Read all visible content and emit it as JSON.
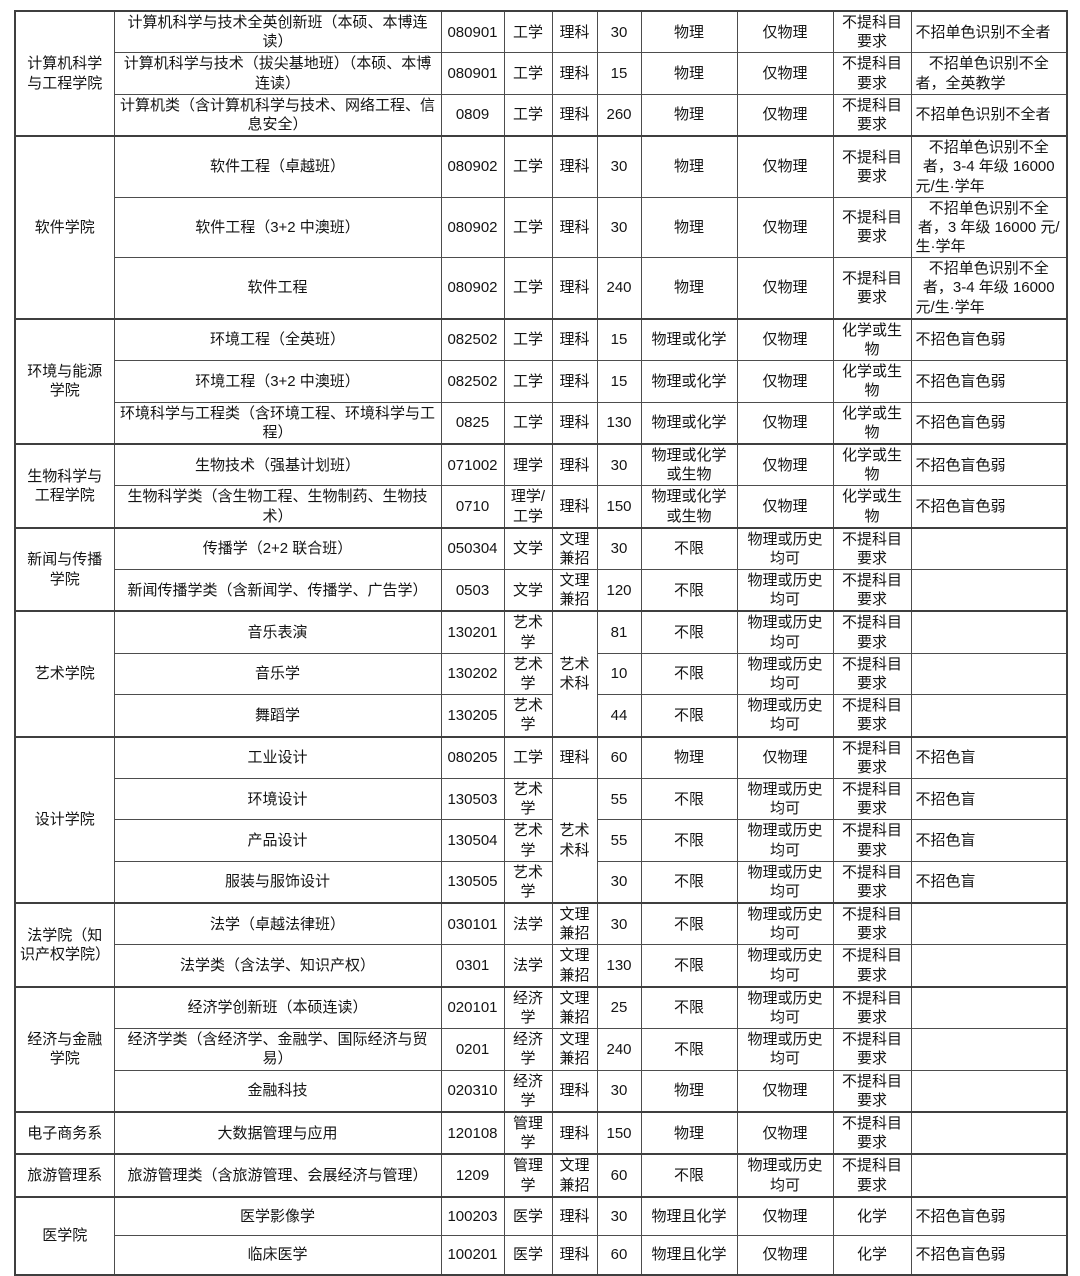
{
  "accent_colors": {
    "border": "#3f3f3f",
    "inner_border": "#4d4d4d",
    "text": "#141414",
    "background": "#ffffff"
  },
  "table": {
    "groups": [
      {
        "college": "计算机科学与工程学院",
        "rows": [
          {
            "major": "计算机科学与技术全英创新班（本硕、本博连读）",
            "code": "080901",
            "degree": "工学",
            "category": {
              "text": "理科",
              "span": 1
            },
            "quota": "30",
            "first_subject": "物理",
            "reselect": "仅物理",
            "requirement": "不提科目要求",
            "remark": "不招单色识别不全者"
          },
          {
            "major": "计算机科学与技术（拔尖基地班）（本硕、本博连读）",
            "code": "080901",
            "degree": "工学",
            "category": {
              "text": "理科",
              "span": 1
            },
            "quota": "15",
            "first_subject": "物理",
            "reselect": "仅物理",
            "requirement": "不提科目要求",
            "remark": "不招单色识别不全者，全英教学"
          },
          {
            "major": "计算机类（含计算机科学与技术、网络工程、信息安全）",
            "code": "0809",
            "degree": "工学",
            "category": {
              "text": "理科",
              "span": 1
            },
            "quota": "260",
            "first_subject": "物理",
            "reselect": "仅物理",
            "requirement": "不提科目要求",
            "remark": "不招单色识别不全者"
          }
        ]
      },
      {
        "college": "软件学院",
        "rows": [
          {
            "major": "软件工程（卓越班）",
            "code": "080902",
            "degree": "工学",
            "category": {
              "text": "理科",
              "span": 1
            },
            "quota": "30",
            "first_subject": "物理",
            "reselect": "仅物理",
            "requirement": "不提科目要求",
            "remark": "不招单色识别不全者，3-4 年级 16000 元/生·学年"
          },
          {
            "major": "软件工程（3+2 中澳班）",
            "code": "080902",
            "degree": "工学",
            "category": {
              "text": "理科",
              "span": 1
            },
            "quota": "30",
            "first_subject": "物理",
            "reselect": "仅物理",
            "requirement": "不提科目要求",
            "remark": "不招单色识别不全者，3 年级 16000 元/生·学年"
          },
          {
            "major": "软件工程",
            "code": "080902",
            "degree": "工学",
            "category": {
              "text": "理科",
              "span": 1
            },
            "quota": "240",
            "first_subject": "物理",
            "reselect": "仅物理",
            "requirement": "不提科目要求",
            "remark": "不招单色识别不全者，3-4 年级 16000 元/生·学年"
          }
        ]
      },
      {
        "college": "环境与能源学院",
        "rows": [
          {
            "major": "环境工程（全英班）",
            "code": "082502",
            "degree": "工学",
            "category": {
              "text": "理科",
              "span": 1
            },
            "quota": "15",
            "first_subject": "物理或化学",
            "reselect": "仅物理",
            "requirement": "化学或生物",
            "remark": "不招色盲色弱"
          },
          {
            "major": "环境工程（3+2 中澳班）",
            "code": "082502",
            "degree": "工学",
            "category": {
              "text": "理科",
              "span": 1
            },
            "quota": "15",
            "first_subject": "物理或化学",
            "reselect": "仅物理",
            "requirement": "化学或生物",
            "remark": "不招色盲色弱"
          },
          {
            "major": "环境科学与工程类（含环境工程、环境科学与工程）",
            "code": "0825",
            "degree": "工学",
            "category": {
              "text": "理科",
              "span": 1
            },
            "quota": "130",
            "first_subject": "物理或化学",
            "reselect": "仅物理",
            "requirement": "化学或生物",
            "remark": "不招色盲色弱"
          }
        ]
      },
      {
        "college": "生物科学与工程学院",
        "rows": [
          {
            "major": "生物技术（强基计划班）",
            "code": "071002",
            "degree": "理学",
            "category": {
              "text": "理科",
              "span": 1
            },
            "quota": "30",
            "first_subject": "物理或化学或生物",
            "reselect": "仅物理",
            "requirement": "化学或生物",
            "remark": "不招色盲色弱"
          },
          {
            "major": "生物科学类（含生物工程、生物制药、生物技术）",
            "code": "0710",
            "degree": "理学/工学",
            "category": {
              "text": "理科",
              "span": 1
            },
            "quota": "150",
            "first_subject": "物理或化学或生物",
            "reselect": "仅物理",
            "requirement": "化学或生物",
            "remark": "不招色盲色弱"
          }
        ]
      },
      {
        "college": "新闻与传播学院",
        "rows": [
          {
            "major": "传播学（2+2 联合班）",
            "code": "050304",
            "degree": "文学",
            "category": {
              "text": "文理兼招",
              "span": 1
            },
            "quota": "30",
            "first_subject": "不限",
            "reselect": "物理或历史均可",
            "requirement": "不提科目要求",
            "remark": ""
          },
          {
            "major": "新闻传播学类（含新闻学、传播学、广告学）",
            "code": "0503",
            "degree": "文学",
            "category": {
              "text": "文理兼招",
              "span": 1
            },
            "quota": "120",
            "first_subject": "不限",
            "reselect": "物理或历史均可",
            "requirement": "不提科目要求",
            "remark": ""
          }
        ]
      },
      {
        "college": "艺术学院",
        "rows": [
          {
            "major": "音乐表演",
            "code": "130201",
            "degree": "艺术学",
            "category": {
              "text": "艺术术科",
              "span": 3
            },
            "quota": "81",
            "first_subject": "不限",
            "reselect": "物理或历史均可",
            "requirement": "不提科目要求",
            "remark": ""
          },
          {
            "major": "音乐学",
            "code": "130202",
            "degree": "艺术学",
            "category": null,
            "quota": "10",
            "first_subject": "不限",
            "reselect": "物理或历史均可",
            "requirement": "不提科目要求",
            "remark": ""
          },
          {
            "major": "舞蹈学",
            "code": "130205",
            "degree": "艺术学",
            "category": null,
            "quota": "44",
            "first_subject": "不限",
            "reselect": "物理或历史均可",
            "requirement": "不提科目要求",
            "remark": ""
          }
        ]
      },
      {
        "college": "设计学院",
        "rows": [
          {
            "major": "工业设计",
            "code": "080205",
            "degree": "工学",
            "category": {
              "text": "理科",
              "span": 1
            },
            "quota": "60",
            "first_subject": "物理",
            "reselect": "仅物理",
            "requirement": "不提科目要求",
            "remark": "不招色盲"
          },
          {
            "major": "环境设计",
            "code": "130503",
            "degree": "艺术学",
            "category": {
              "text": "艺术术科",
              "span": 3
            },
            "quota": "55",
            "first_subject": "不限",
            "reselect": "物理或历史均可",
            "requirement": "不提科目要求",
            "remark": "不招色盲"
          },
          {
            "major": "产品设计",
            "code": "130504",
            "degree": "艺术学",
            "category": null,
            "quota": "55",
            "first_subject": "不限",
            "reselect": "物理或历史均可",
            "requirement": "不提科目要求",
            "remark": "不招色盲"
          },
          {
            "major": "服装与服饰设计",
            "code": "130505",
            "degree": "艺术学",
            "category": null,
            "quota": "30",
            "first_subject": "不限",
            "reselect": "物理或历史均可",
            "requirement": "不提科目要求",
            "remark": "不招色盲"
          }
        ]
      },
      {
        "college": "法学院（知识产权学院）",
        "rows": [
          {
            "major": "法学（卓越法律班）",
            "code": "030101",
            "degree": "法学",
            "category": {
              "text": "文理兼招",
              "span": 1
            },
            "quota": "30",
            "first_subject": "不限",
            "reselect": "物理或历史均可",
            "requirement": "不提科目要求",
            "remark": ""
          },
          {
            "major": "法学类（含法学、知识产权）",
            "code": "0301",
            "degree": "法学",
            "category": {
              "text": "文理兼招",
              "span": 1
            },
            "quota": "130",
            "first_subject": "不限",
            "reselect": "物理或历史均可",
            "requirement": "不提科目要求",
            "remark": ""
          }
        ]
      },
      {
        "college": "经济与金融学院",
        "rows": [
          {
            "major": "经济学创新班（本硕连读）",
            "code": "020101",
            "degree": "经济学",
            "category": {
              "text": "文理兼招",
              "span": 1
            },
            "quota": "25",
            "first_subject": "不限",
            "reselect": "物理或历史均可",
            "requirement": "不提科目要求",
            "remark": ""
          },
          {
            "major": "经济学类（含经济学、金融学、国际经济与贸易）",
            "code": "0201",
            "degree": "经济学",
            "category": {
              "text": "文理兼招",
              "span": 1
            },
            "quota": "240",
            "first_subject": "不限",
            "reselect": "物理或历史均可",
            "requirement": "不提科目要求",
            "remark": ""
          },
          {
            "major": "金融科技",
            "code": "020310",
            "degree": "经济学",
            "category": {
              "text": "理科",
              "span": 1
            },
            "quota": "30",
            "first_subject": "物理",
            "reselect": "仅物理",
            "requirement": "不提科目要求",
            "remark": ""
          }
        ]
      },
      {
        "college": "电子商务系",
        "rows": [
          {
            "major": "大数据管理与应用",
            "code": "120108",
            "degree": "管理学",
            "category": {
              "text": "理科",
              "span": 1
            },
            "quota": "150",
            "first_subject": "物理",
            "reselect": "仅物理",
            "requirement": "不提科目要求",
            "remark": ""
          }
        ]
      },
      {
        "college": "旅游管理系",
        "rows": [
          {
            "major": "旅游管理类（含旅游管理、会展经济与管理）",
            "code": "1209",
            "degree": "管理学",
            "category": {
              "text": "文理兼招",
              "span": 1
            },
            "quota": "60",
            "first_subject": "不限",
            "reselect": "物理或历史均可",
            "requirement": "不提科目要求",
            "remark": ""
          }
        ]
      },
      {
        "college": "医学院",
        "rows": [
          {
            "major": "医学影像学",
            "code": "100203",
            "degree": "医学",
            "category": {
              "text": "理科",
              "span": 1
            },
            "quota": "30",
            "first_subject": "物理且化学",
            "reselect": "仅物理",
            "requirement": "化学",
            "remark": "不招色盲色弱"
          },
          {
            "major": "临床医学",
            "code": "100201",
            "degree": "医学",
            "category": {
              "text": "理科",
              "span": 1
            },
            "quota": "60",
            "first_subject": "物理且化学",
            "reselect": "仅物理",
            "requirement": "化学",
            "remark": "不招色盲色弱"
          }
        ]
      }
    ]
  }
}
